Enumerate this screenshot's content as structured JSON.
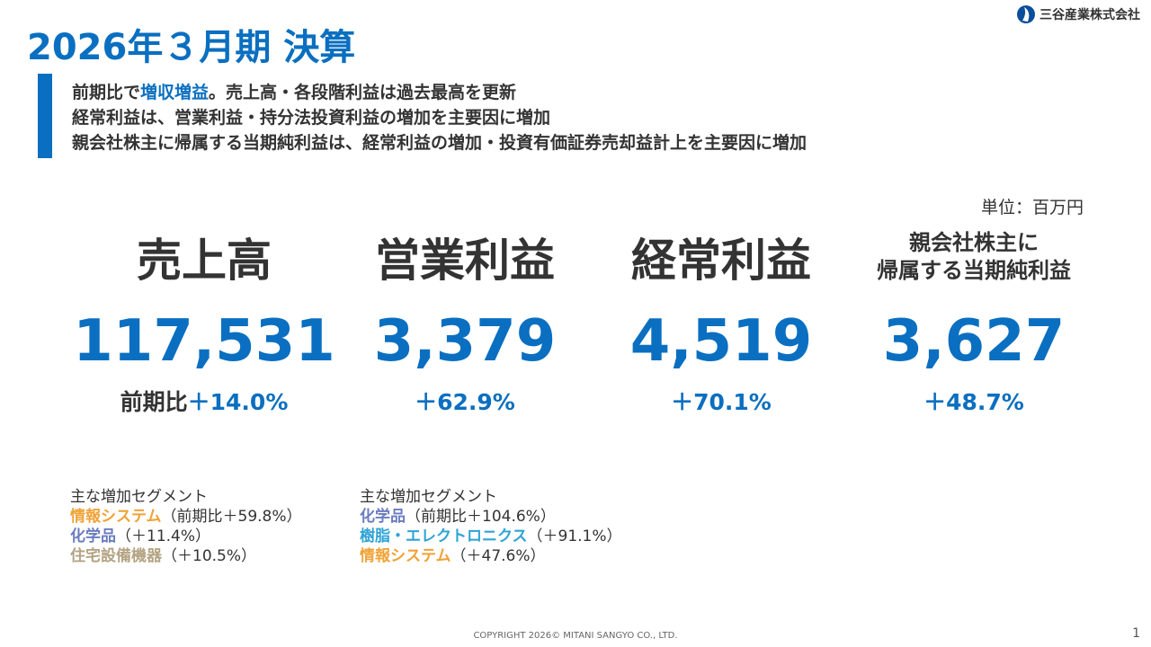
{
  "header": {
    "title": "2026年３月期 決算",
    "company": "三谷産業株式会社"
  },
  "summary": [
    [
      "前期比で",
      "増収増益",
      "。売上高・各段階利益は過去最高を更新"
    ],
    [
      "経常利益は、営業利益・持分法投資利益の増加を主要因に増加"
    ],
    [
      "親会社株主に帰属する当期純利益は、経常利益の増加・投資有価証券売却益計上を主要因に増加"
    ]
  ],
  "unit": "単位：百万円",
  "metrics": [
    {
      "label": [
        "売上高"
      ],
      "value": "117,531",
      "prefix": "前期比",
      "change": "＋14.0%"
    },
    {
      "label": [
        "営業利益"
      ],
      "value": "3,379",
      "change": "＋62.9%"
    },
    {
      "label": [
        "経常利益"
      ],
      "value": "4,519",
      "change": "＋70.1%"
    },
    {
      "label": [
        "親会社株主に",
        "帰属する当期純利益"
      ],
      "value": "3,627",
      "change": "＋48.7%"
    }
  ],
  "segments": [
    {
      "heading": "主な増加セグメント",
      "items": [
        {
          "name": "情報システム",
          "note": "（前期比＋59.8%）",
          "color": "#f0a236"
        },
        {
          "name": "化学品",
          "note": "（＋11.4%）",
          "color": "#6b7cc0"
        },
        {
          "name": "住宅設備機器",
          "note": "（＋10.5%）",
          "color": "#b4a383"
        }
      ]
    },
    {
      "heading": "主な増加セグメント",
      "items": [
        {
          "name": "化学品",
          "note": "（前期比＋104.6%）",
          "color": "#6b7cc0"
        },
        {
          "name": "樹脂・エレクトロニクス",
          "note": "（＋91.1%）",
          "color": "#2fa3d6"
        },
        {
          "name": "情報システム",
          "note": "（＋47.6%）",
          "color": "#f0a236"
        }
      ]
    }
  ],
  "footer": {
    "copyright": "COPYRIGHT 2026© MITANI SANGYO CO., LTD.",
    "page": "1"
  }
}
